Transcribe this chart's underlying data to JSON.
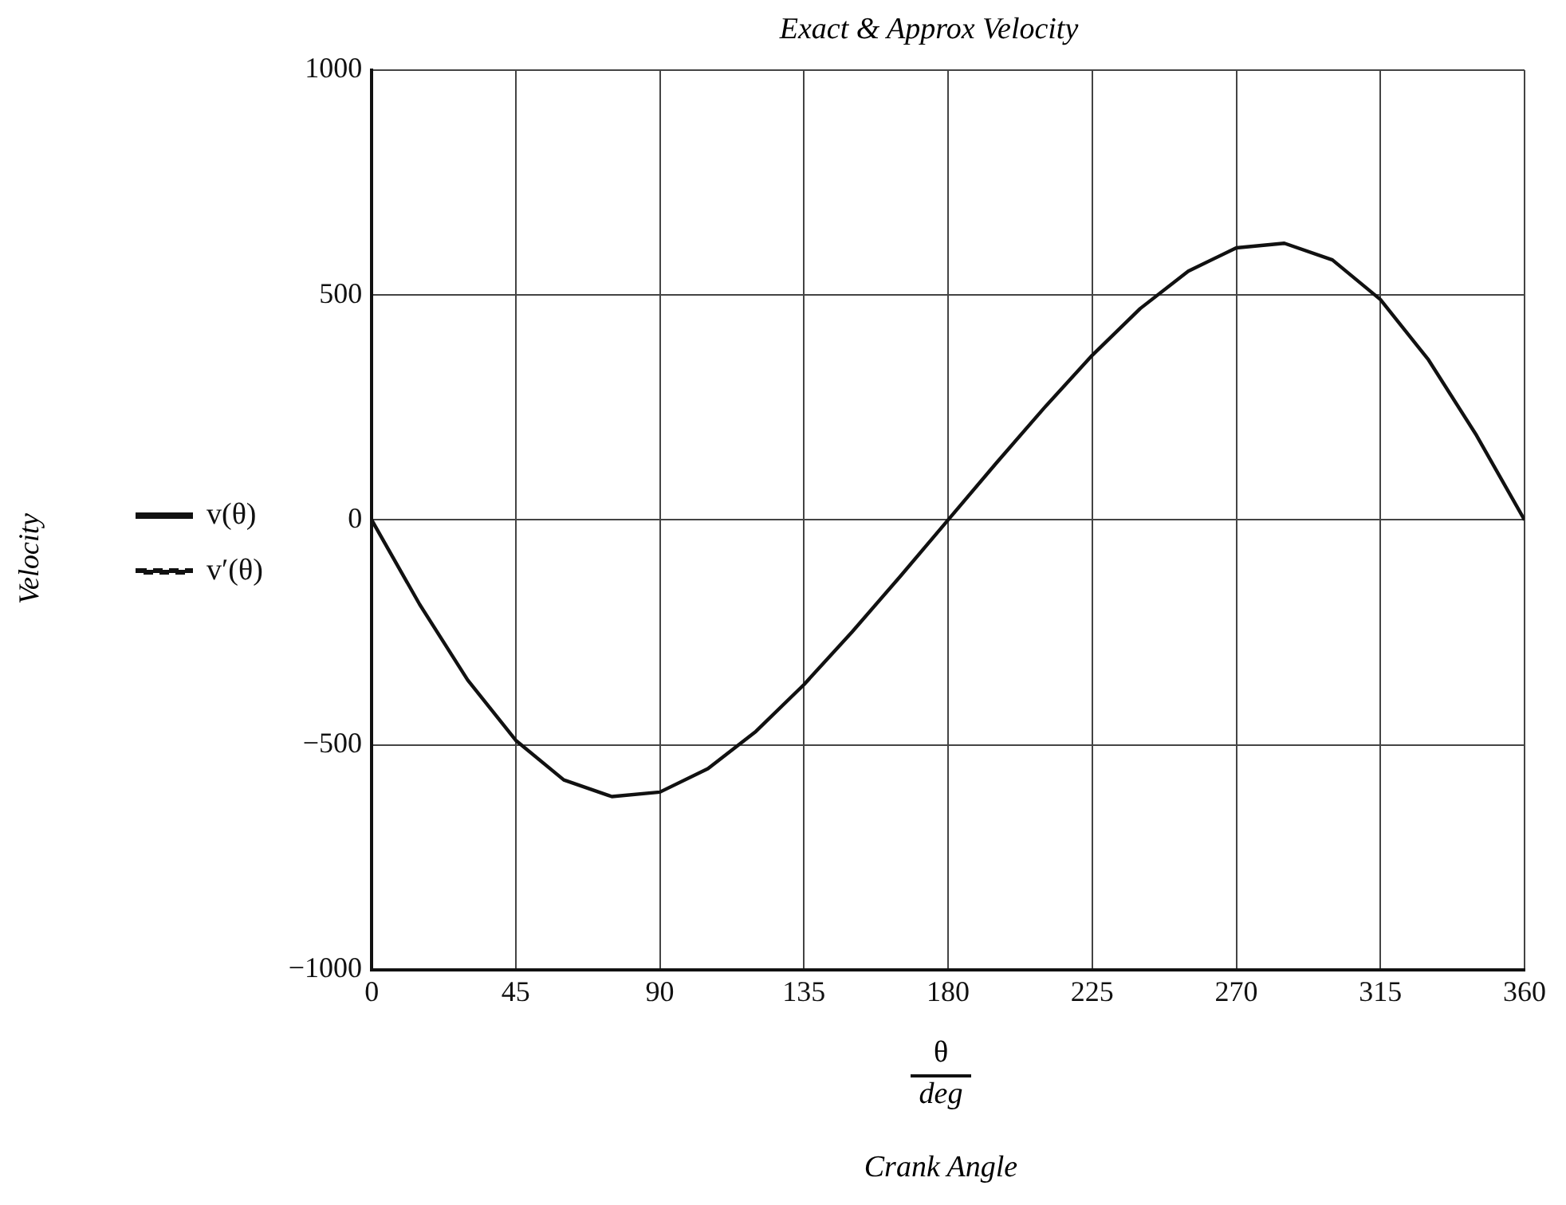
{
  "chart_data": {
    "type": "line",
    "title": "Exact & Approx Velocity",
    "xlabel": "Crank Angle",
    "annotations": [
      "Velocity",
      "θ",
      "deg"
    ],
    "x": [
      0,
      15,
      30,
      45,
      60,
      75,
      90,
      105,
      120,
      135,
      150,
      165,
      180,
      195,
      210,
      225,
      240,
      255,
      270,
      285,
      300,
      315,
      330,
      345,
      360
    ],
    "series": [
      {
        "name": "v(θ)",
        "color": "#111111",
        "line_style": "solid",
        "values": [
          0,
          -188,
          -356,
          -490,
          -578,
          -615,
          -605,
          -553,
          -470,
          -366,
          -249,
          -126,
          0,
          126,
          249,
          366,
          470,
          553,
          605,
          615,
          578,
          490,
          356,
          188,
          0
        ]
      },
      {
        "name": "v′(θ)",
        "color": "#111111",
        "line_style": "dashed",
        "values": [
          null,
          null,
          null,
          null,
          null,
          null,
          null,
          null,
          null,
          null,
          null,
          null,
          null,
          null,
          null,
          null,
          null,
          null,
          null,
          null,
          null,
          null,
          null,
          null,
          null
        ]
      }
    ],
    "xlim": [
      0,
      360
    ],
    "xticks": [
      0,
      45,
      90,
      135,
      180,
      225,
      270,
      315,
      360
    ],
    "ylim": [
      -1000,
      1000
    ],
    "yticks": [
      -1000,
      -500,
      0,
      500,
      1000
    ],
    "grid": true,
    "legend": "left",
    "marker": "none"
  }
}
